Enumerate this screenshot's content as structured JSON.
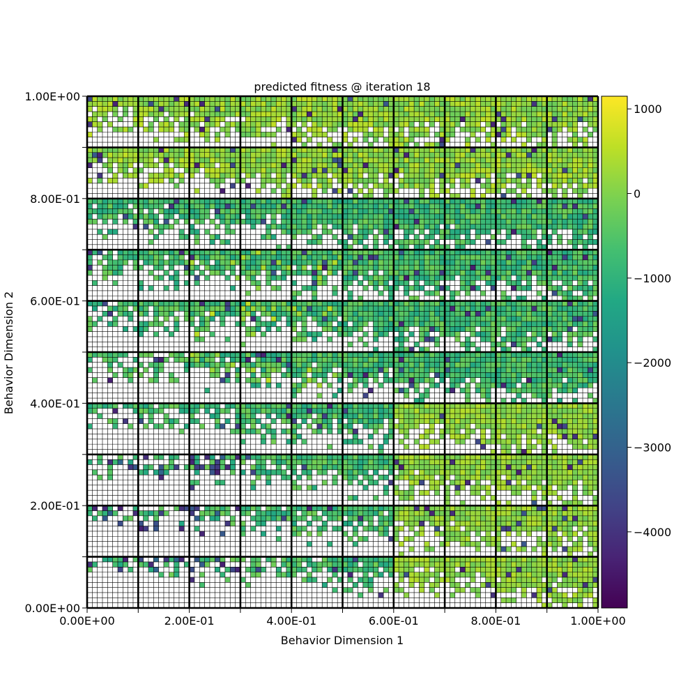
{
  "chart_data": {
    "type": "heatmap",
    "title": "predicted fitness @ iteration 18",
    "xlabel": "Behavior Dimension 1",
    "ylabel": "Behavior Dimension 2",
    "xlim": [
      0,
      1
    ],
    "ylim": [
      0,
      1
    ],
    "x_tick_values": [
      0,
      0.1,
      0.2,
      0.3,
      0.4,
      0.5,
      0.6,
      0.7,
      0.8,
      0.9,
      1.0
    ],
    "x_tick_labels": [
      "0.00E+00",
      "",
      "2.00E-01",
      "",
      "4.00E-01",
      "",
      "6.00E-01",
      "",
      "8.00E-01",
      "",
      "1.00E+00"
    ],
    "y_tick_values": [
      0,
      0.1,
      0.2,
      0.3,
      0.4,
      0.5,
      0.6,
      0.7,
      0.8,
      0.9,
      1.0
    ],
    "y_tick_labels": [
      "0.00E+00",
      "",
      "2.00E-01",
      "",
      "4.00E-01",
      "",
      "6.00E-01",
      "",
      "8.00E-01",
      "",
      "1.00E+00"
    ],
    "grid": {
      "coarse_cells_per_axis": 10,
      "fine_cells_per_coarse": 10,
      "fine_cells_per_axis": 100
    },
    "colorbar": {
      "colormap": "viridis",
      "vmin": -4900,
      "vmax": 1150,
      "ticks": [
        1000,
        0,
        -1000,
        -2000,
        -3000,
        -4000
      ],
      "tick_labels": [
        "1000",
        "0",
        "−1000",
        "−2000",
        "−3000",
        "−4000"
      ]
    },
    "empty_cell_color": "#ffffff",
    "dominant_value": -300,
    "value_range_note": "",
    "rows_top_to_bottom": [
      "LLLLLLLLL.  LLLLLLLLL. LLLLLLLLL. LLLLLLLLL. LLLLLLLLL. LLLLLLLLL. LLLLLLLLL. LLLLLLLLL. LLLLLLLLL. LLLLLLLLL.",
      "..."
    ]
  }
}
